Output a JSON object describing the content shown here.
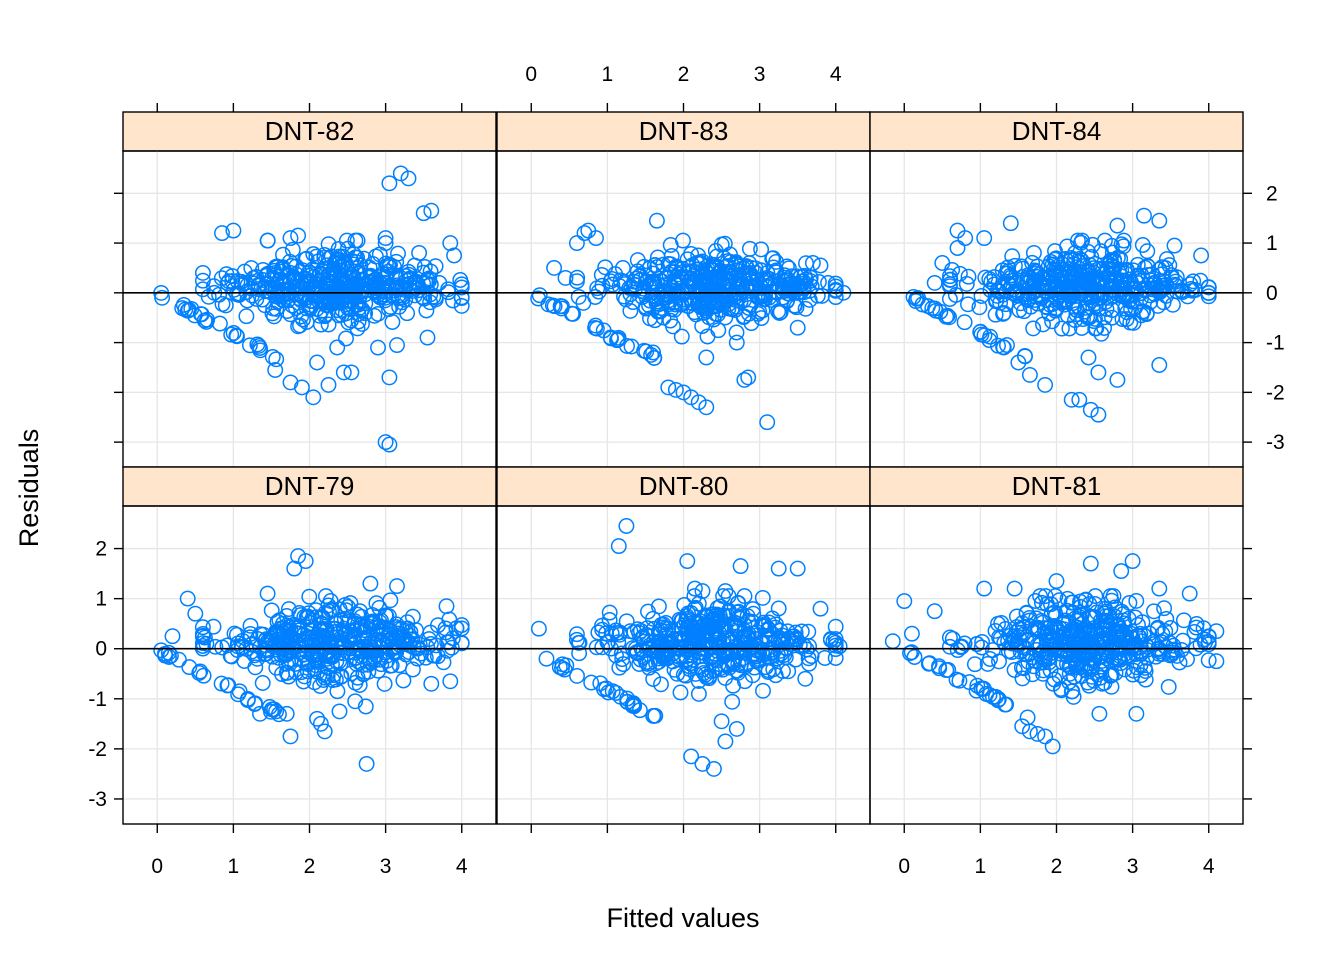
{
  "colors": {
    "points": "#0080ff",
    "strip": "#ffe5cc",
    "grid": "#e6e6e6"
  },
  "chart_data": {
    "type": "scatter",
    "layout": "trellis 3 columns x 2 rows",
    "xlabel": "Fitted values",
    "ylabel": "Residuals",
    "xlim": [
      -0.45,
      4.45
    ],
    "ylim": [
      -3.5,
      2.85
    ],
    "x_ticks": [
      0,
      1,
      2,
      3,
      4
    ],
    "y_ticks": [
      -3,
      -2,
      -1,
      0,
      1,
      2
    ],
    "x_tick_labels": [
      "0",
      "1",
      "2",
      "3",
      "4"
    ],
    "y_tick_labels": [
      "-3",
      "-2",
      "-1",
      "0",
      "1",
      "2"
    ],
    "reference_line_y": 0,
    "grid": true,
    "panels": [
      {
        "label": "DNT-82",
        "outliers": [
          {
            "x": 3.05,
            "y": 2.2
          },
          {
            "x": 3.2,
            "y": 2.4
          },
          {
            "x": 3.3,
            "y": 2.3
          },
          {
            "x": 3.5,
            "y": 1.6
          },
          {
            "x": 3.6,
            "y": 1.65
          },
          {
            "x": 0.85,
            "y": 1.2
          },
          {
            "x": 1.0,
            "y": 1.25
          },
          {
            "x": 1.75,
            "y": 1.1
          },
          {
            "x": 1.85,
            "y": 1.15
          },
          {
            "x": 3.05,
            "y": -1.7
          },
          {
            "x": 3.0,
            "y": -3.0
          },
          {
            "x": 3.05,
            "y": -3.05
          },
          {
            "x": 2.05,
            "y": -2.1
          },
          {
            "x": 1.9,
            "y": -1.9
          },
          {
            "x": 2.25,
            "y": -1.85
          },
          {
            "x": 2.45,
            "y": -1.6
          },
          {
            "x": 2.55,
            "y": -1.6
          },
          {
            "x": 1.75,
            "y": -1.8
          },
          {
            "x": 1.55,
            "y": -1.55
          },
          {
            "x": 2.1,
            "y": -1.4
          },
          {
            "x": 2.9,
            "y": -1.1
          },
          {
            "x": 3.15,
            "y": -1.05
          },
          {
            "x": 3.55,
            "y": -0.9
          },
          {
            "x": 3.0,
            "y": 1.1
          },
          {
            "x": 3.0,
            "y": 1.0
          },
          {
            "x": 3.85,
            "y": 1.0
          },
          {
            "x": 3.9,
            "y": 0.75
          },
          {
            "x": 0.6,
            "y": 0.4
          },
          {
            "x": 0.75,
            "y": 0.0
          },
          {
            "x": 1.45,
            "y": 1.05
          }
        ]
      },
      {
        "label": "DNT-83",
        "outliers": [
          {
            "x": 0.7,
            "y": 1.2
          },
          {
            "x": 0.75,
            "y": 1.25
          },
          {
            "x": 0.6,
            "y": 1.0
          },
          {
            "x": 0.85,
            "y": 1.1
          },
          {
            "x": 1.65,
            "y": 1.45
          },
          {
            "x": 1.8,
            "y": -1.9
          },
          {
            "x": 1.9,
            "y": -1.95
          },
          {
            "x": 2.0,
            "y": -2.0
          },
          {
            "x": 2.1,
            "y": -2.1
          },
          {
            "x": 2.2,
            "y": -2.2
          },
          {
            "x": 2.3,
            "y": -2.3
          },
          {
            "x": 2.8,
            "y": -1.75
          },
          {
            "x": 2.85,
            "y": -1.7
          },
          {
            "x": 3.1,
            "y": -2.6
          },
          {
            "x": 0.3,
            "y": 0.5
          },
          {
            "x": 0.45,
            "y": 0.3
          },
          {
            "x": 3.7,
            "y": 0.6
          },
          {
            "x": 3.8,
            "y": 0.55
          },
          {
            "x": 3.9,
            "y": 0.2
          },
          {
            "x": 4.1,
            "y": 0.0
          },
          {
            "x": 2.3,
            "y": -1.3
          },
          {
            "x": 2.7,
            "y": -1.0
          },
          {
            "x": 3.5,
            "y": -0.7
          },
          {
            "x": 1.6,
            "y": -1.2
          }
        ]
      },
      {
        "label": "DNT-84",
        "outliers": [
          {
            "x": 0.7,
            "y": 1.25
          },
          {
            "x": 0.8,
            "y": 1.1
          },
          {
            "x": 0.7,
            "y": 0.9
          },
          {
            "x": 1.05,
            "y": 1.1
          },
          {
            "x": 1.4,
            "y": 1.4
          },
          {
            "x": 2.8,
            "y": 1.35
          },
          {
            "x": 3.15,
            "y": 1.55
          },
          {
            "x": 3.35,
            "y": 1.45
          },
          {
            "x": 3.55,
            "y": 0.95
          },
          {
            "x": 3.9,
            "y": 0.75
          },
          {
            "x": 2.2,
            "y": -2.15
          },
          {
            "x": 2.3,
            "y": -2.15
          },
          {
            "x": 2.45,
            "y": -2.35
          },
          {
            "x": 2.55,
            "y": -2.45
          },
          {
            "x": 2.8,
            "y": -1.75
          },
          {
            "x": 2.55,
            "y": -1.6
          },
          {
            "x": 1.65,
            "y": -1.65
          },
          {
            "x": 1.85,
            "y": -1.85
          },
          {
            "x": 1.5,
            "y": -1.4
          },
          {
            "x": 3.35,
            "y": -1.45
          },
          {
            "x": 0.5,
            "y": 0.6
          },
          {
            "x": 0.4,
            "y": 0.2
          }
        ]
      },
      {
        "label": "DNT-79",
        "outliers": [
          {
            "x": 1.85,
            "y": 1.85
          },
          {
            "x": 1.95,
            "y": 1.75
          },
          {
            "x": 1.8,
            "y": 1.6
          },
          {
            "x": 2.8,
            "y": 1.3
          },
          {
            "x": 3.15,
            "y": 1.25
          },
          {
            "x": 1.45,
            "y": 1.1
          },
          {
            "x": 0.4,
            "y": 1.0
          },
          {
            "x": 0.5,
            "y": 0.7
          },
          {
            "x": 0.2,
            "y": 0.25
          },
          {
            "x": 2.75,
            "y": -2.3
          },
          {
            "x": 1.75,
            "y": -1.75
          },
          {
            "x": 2.15,
            "y": -1.5
          },
          {
            "x": 2.2,
            "y": -1.65
          },
          {
            "x": 2.1,
            "y": -1.4
          },
          {
            "x": 1.7,
            "y": -1.3
          },
          {
            "x": 2.6,
            "y": -1.05
          },
          {
            "x": 3.6,
            "y": -0.7
          },
          {
            "x": 3.85,
            "y": -0.65
          },
          {
            "x": 3.8,
            "y": 0.85
          },
          {
            "x": 1.35,
            "y": -1.3
          }
        ]
      },
      {
        "label": "DNT-80",
        "outliers": [
          {
            "x": 1.25,
            "y": 2.45
          },
          {
            "x": 1.15,
            "y": 2.05
          },
          {
            "x": 2.05,
            "y": 1.75
          },
          {
            "x": 2.75,
            "y": 1.65
          },
          {
            "x": 3.25,
            "y": 1.6
          },
          {
            "x": 3.5,
            "y": 1.6
          },
          {
            "x": 2.15,
            "y": 1.2
          },
          {
            "x": 2.25,
            "y": 1.15
          },
          {
            "x": 2.55,
            "y": 1.15
          },
          {
            "x": 3.8,
            "y": 0.8
          },
          {
            "x": 4.05,
            "y": 0.05
          },
          {
            "x": 0.1,
            "y": 0.4
          },
          {
            "x": 0.2,
            "y": -0.2
          },
          {
            "x": 2.1,
            "y": -2.15
          },
          {
            "x": 2.25,
            "y": -2.3
          },
          {
            "x": 2.4,
            "y": -2.4
          },
          {
            "x": 2.55,
            "y": -1.85
          },
          {
            "x": 2.7,
            "y": -1.6
          },
          {
            "x": 2.5,
            "y": -1.45
          },
          {
            "x": 3.6,
            "y": -0.6
          },
          {
            "x": 3.65,
            "y": -0.3
          }
        ]
      },
      {
        "label": "DNT-81",
        "outliers": [
          {
            "x": -0.15,
            "y": 0.15
          },
          {
            "x": 0.0,
            "y": 0.95
          },
          {
            "x": 0.1,
            "y": 0.3
          },
          {
            "x": 0.4,
            "y": 0.75
          },
          {
            "x": 1.05,
            "y": 1.2
          },
          {
            "x": 1.45,
            "y": 1.2
          },
          {
            "x": 2.0,
            "y": 1.35
          },
          {
            "x": 2.45,
            "y": 1.7
          },
          {
            "x": 3.0,
            "y": 1.75
          },
          {
            "x": 2.85,
            "y": 1.55
          },
          {
            "x": 3.35,
            "y": 1.2
          },
          {
            "x": 3.75,
            "y": 1.1
          },
          {
            "x": 1.95,
            "y": -1.95
          },
          {
            "x": 1.85,
            "y": -1.75
          },
          {
            "x": 1.75,
            "y": -1.7
          },
          {
            "x": 1.65,
            "y": -1.65
          },
          {
            "x": 1.55,
            "y": -1.55
          },
          {
            "x": 3.05,
            "y": -1.3
          },
          {
            "x": 2.6,
            "y": -0.7
          },
          {
            "x": 4.1,
            "y": 0.35
          },
          {
            "x": 4.1,
            "y": -0.25
          }
        ]
      }
    ]
  }
}
